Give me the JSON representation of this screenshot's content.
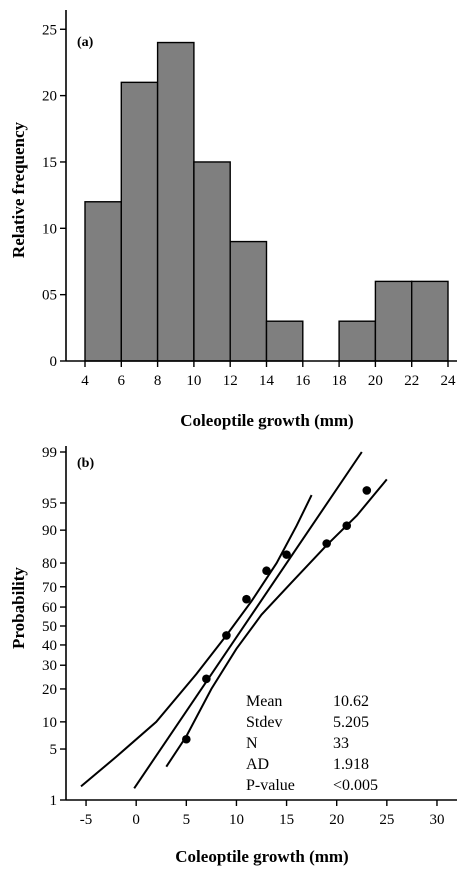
{
  "chart_data": [
    {
      "type": "bar",
      "panel_label": "(a)",
      "xlabel": "Coleoptile growth (mm)",
      "ylabel": "Relative frequency",
      "bin_edges": [
        4,
        6,
        8,
        10,
        12,
        14,
        16,
        18,
        20,
        22,
        24
      ],
      "values": [
        12,
        21,
        24,
        15,
        9,
        3,
        0,
        3,
        6,
        6
      ],
      "xticks": [
        "4",
        "6",
        "8",
        "10",
        "12",
        "14",
        "16",
        "18",
        "20",
        "22",
        "24"
      ],
      "yticks": [
        "0",
        "05",
        "10",
        "15",
        "20",
        "25"
      ],
      "ytick_values": [
        0,
        5,
        10,
        15,
        20,
        25
      ],
      "xlim": [
        4,
        24
      ],
      "ylim": [
        0,
        26
      ]
    },
    {
      "type": "scatter",
      "panel_label": "(b)",
      "xlabel": "Coleoptile growth (mm)",
      "ylabel": "Probability",
      "y_scale": "normal probability",
      "xticks": [
        "-5",
        "0",
        "5",
        "10",
        "15",
        "20",
        "25",
        "30"
      ],
      "xtick_values": [
        -5,
        0,
        5,
        10,
        15,
        20,
        25,
        30
      ],
      "yticks": [
        "1",
        "5",
        "10",
        "20",
        "30",
        "40",
        "50",
        "60",
        "70",
        "80",
        "90",
        "95",
        "99"
      ],
      "ytick_values": [
        1,
        5,
        10,
        20,
        30,
        40,
        50,
        60,
        70,
        80,
        90,
        95,
        99
      ],
      "xlim": [
        -7,
        31
      ],
      "ylim": [
        1,
        99
      ],
      "points": [
        {
          "x": 5.0,
          "y": 6.5
        },
        {
          "x": 7.0,
          "y": 24
        },
        {
          "x": 9.0,
          "y": 45
        },
        {
          "x": 11.0,
          "y": 64
        },
        {
          "x": 13.0,
          "y": 77
        },
        {
          "x": 15.0,
          "y": 83
        },
        {
          "x": 19.0,
          "y": 86.5
        },
        {
          "x": 21.0,
          "y": 91
        },
        {
          "x": 23.0,
          "y": 96.5
        }
      ],
      "fit_line": [
        [
          -0.2,
          1.5
        ],
        [
          22.5,
          99
        ]
      ],
      "confidence_bands": [
        [
          [
            -5.5,
            1.6
          ],
          [
            -2,
            4
          ],
          [
            2,
            10
          ],
          [
            6,
            26
          ],
          [
            9,
            45
          ],
          [
            11.5,
            63
          ],
          [
            14,
            80
          ],
          [
            16,
            91
          ],
          [
            17.5,
            96
          ]
        ],
        [
          [
            3,
            3
          ],
          [
            5,
            7
          ],
          [
            7.5,
            20
          ],
          [
            10,
            38
          ],
          [
            12.5,
            56
          ],
          [
            15.5,
            72
          ],
          [
            19,
            86
          ],
          [
            22,
            93
          ],
          [
            25,
            97.5
          ]
        ]
      ],
      "stats": [
        {
          "label": "Mean",
          "value": "10.62"
        },
        {
          "label": "Stdev",
          "value": "5.205"
        },
        {
          "label": "N",
          "value": "33"
        },
        {
          "label": "AD",
          "value": "1.918"
        },
        {
          "label": "P-value",
          "value": "<0.005"
        }
      ]
    }
  ]
}
